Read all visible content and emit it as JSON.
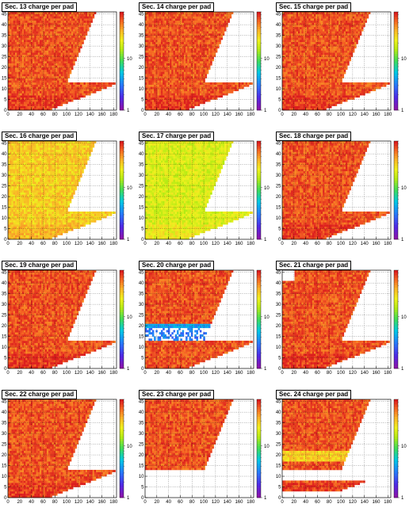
{
  "layout": {
    "rows": 4,
    "cols": 3
  },
  "chart_data": [
    {
      "type": "heatmap",
      "title": "Sec. 13 charge per pad",
      "xlim": [
        0,
        185
      ],
      "ylim": [
        0,
        46
      ],
      "xticks": [
        0,
        20,
        40,
        60,
        80,
        100,
        120,
        140,
        160,
        180
      ],
      "yticks": [
        0,
        5,
        10,
        15,
        20,
        25,
        30,
        35,
        40,
        45
      ],
      "zscale": "log",
      "zlim": [
        1,
        80
      ],
      "colorbar_ticks": [
        1,
        10
      ],
      "grid": true,
      "fill_level": 60,
      "pattern": "standard"
    },
    {
      "type": "heatmap",
      "title": "Sec. 14 charge per pad",
      "xlim": [
        0,
        185
      ],
      "ylim": [
        0,
        46
      ],
      "xticks": [
        0,
        20,
        40,
        60,
        80,
        100,
        120,
        140,
        160,
        180
      ],
      "yticks": [
        0,
        5,
        10,
        15,
        20,
        25,
        30,
        35,
        40,
        45
      ],
      "zscale": "log",
      "zlim": [
        1,
        80
      ],
      "colorbar_ticks": [
        1,
        10
      ],
      "grid": true,
      "fill_level": 60,
      "pattern": "standard"
    },
    {
      "type": "heatmap",
      "title": "Sec. 15 charge per pad",
      "xlim": [
        0,
        185
      ],
      "ylim": [
        0,
        46
      ],
      "xticks": [
        0,
        20,
        40,
        60,
        80,
        100,
        120,
        140,
        160,
        180
      ],
      "yticks": [
        0,
        5,
        10,
        15,
        20,
        25,
        30,
        35,
        40,
        45
      ],
      "zscale": "log",
      "zlim": [
        1,
        80
      ],
      "colorbar_ticks": [
        1,
        10
      ],
      "grid": true,
      "fill_level": 60,
      "pattern": "standard"
    },
    {
      "type": "heatmap",
      "title": "Sec. 16 charge per pad",
      "xlim": [
        0,
        185
      ],
      "ylim": [
        0,
        46
      ],
      "xticks": [
        0,
        20,
        40,
        60,
        80,
        100,
        120,
        140,
        160,
        180
      ],
      "yticks": [
        0,
        5,
        10,
        15,
        20,
        25,
        30,
        35,
        40,
        45
      ],
      "zscale": "log",
      "zlim": [
        1,
        80
      ],
      "colorbar_ticks": [
        1,
        10
      ],
      "grid": true,
      "fill_level": 30,
      "pattern": "standard"
    },
    {
      "type": "heatmap",
      "title": "Sec. 17 charge per pad",
      "xlim": [
        0,
        185
      ],
      "ylim": [
        0,
        46
      ],
      "xticks": [
        0,
        20,
        40,
        60,
        80,
        100,
        120,
        140,
        160,
        180
      ],
      "yticks": [
        0,
        5,
        10,
        15,
        20,
        25,
        30,
        35,
        40,
        45
      ],
      "zscale": "log",
      "zlim": [
        1,
        80
      ],
      "colorbar_ticks": [
        1,
        10
      ],
      "grid": true,
      "fill_level": 20,
      "pattern": "standard"
    },
    {
      "type": "heatmap",
      "title": "Sec. 18 charge per pad",
      "xlim": [
        0,
        185
      ],
      "ylim": [
        0,
        46
      ],
      "xticks": [
        0,
        20,
        40,
        60,
        80,
        100,
        120,
        140,
        160,
        180
      ],
      "yticks": [
        0,
        5,
        10,
        15,
        20,
        25,
        30,
        35,
        40,
        45
      ],
      "zscale": "log",
      "zlim": [
        1,
        80
      ],
      "colorbar_ticks": [
        1,
        10
      ],
      "grid": true,
      "fill_level": 60,
      "pattern": "standard"
    },
    {
      "type": "heatmap",
      "title": "Sec. 19 charge per pad",
      "xlim": [
        0,
        185
      ],
      "ylim": [
        0,
        46
      ],
      "xticks": [
        0,
        20,
        40,
        60,
        80,
        100,
        120,
        140,
        160,
        180
      ],
      "yticks": [
        0,
        5,
        10,
        15,
        20,
        25,
        30,
        35,
        40,
        45
      ],
      "zscale": "log",
      "zlim": [
        1,
        80
      ],
      "colorbar_ticks": [
        1,
        10
      ],
      "grid": true,
      "fill_level": 60,
      "pattern": "standard"
    },
    {
      "type": "heatmap",
      "title": "Sec. 20 charge per pad",
      "xlim": [
        0,
        185
      ],
      "ylim": [
        0,
        46
      ],
      "xticks": [
        0,
        20,
        40,
        60,
        80,
        100,
        120,
        140,
        160,
        180
      ],
      "yticks": [
        0,
        5,
        10,
        15,
        20,
        25,
        30,
        35,
        40,
        45
      ],
      "zscale": "log",
      "zlim": [
        1,
        80
      ],
      "colorbar_ticks": [
        1,
        10
      ],
      "grid": true,
      "fill_level": 60,
      "pattern": "sec20"
    },
    {
      "type": "heatmap",
      "title": "Sec. 21 charge per pad",
      "xlim": [
        0,
        185
      ],
      "ylim": [
        0,
        46
      ],
      "xticks": [
        0,
        20,
        40,
        60,
        80,
        100,
        120,
        140,
        160,
        180
      ],
      "yticks": [
        0,
        5,
        10,
        15,
        20,
        25,
        30,
        35,
        40,
        45
      ],
      "zscale": "log",
      "zlim": [
        1,
        80
      ],
      "colorbar_ticks": [
        1,
        10
      ],
      "grid": true,
      "fill_level": 60,
      "pattern": "sec21"
    },
    {
      "type": "heatmap",
      "title": "Sec. 22 charge per pad",
      "xlim": [
        0,
        185
      ],
      "ylim": [
        0,
        46
      ],
      "xticks": [
        0,
        20,
        40,
        60,
        80,
        100,
        120,
        140,
        160,
        180
      ],
      "yticks": [
        0,
        5,
        10,
        15,
        20,
        25,
        30,
        35,
        40,
        45
      ],
      "zscale": "log",
      "zlim": [
        1,
        80
      ],
      "colorbar_ticks": [
        1,
        10
      ],
      "grid": true,
      "fill_level": 60,
      "pattern": "standard"
    },
    {
      "type": "heatmap",
      "title": "Sec. 23 charge per pad",
      "xlim": [
        0,
        185
      ],
      "ylim": [
        0,
        46
      ],
      "xticks": [
        0,
        20,
        40,
        60,
        80,
        100,
        120,
        140,
        160,
        180
      ],
      "yticks": [
        0,
        5,
        10,
        15,
        20,
        25,
        30,
        35,
        40,
        45
      ],
      "zscale": "log",
      "zlim": [
        1,
        80
      ],
      "colorbar_ticks": [
        1,
        10
      ],
      "grid": true,
      "fill_level": 60,
      "pattern": "sec23"
    },
    {
      "type": "heatmap",
      "title": "Sec. 24 charge per pad",
      "xlim": [
        0,
        185
      ],
      "ylim": [
        0,
        46
      ],
      "xticks": [
        0,
        20,
        40,
        60,
        80,
        100,
        120,
        140,
        160,
        180
      ],
      "yticks": [
        0,
        5,
        10,
        15,
        20,
        25,
        30,
        35,
        40,
        45
      ],
      "zscale": "log",
      "zlim": [
        1,
        80
      ],
      "colorbar_ticks": [
        1,
        10
      ],
      "grid": true,
      "fill_level": 60,
      "pattern": "sec24"
    }
  ]
}
